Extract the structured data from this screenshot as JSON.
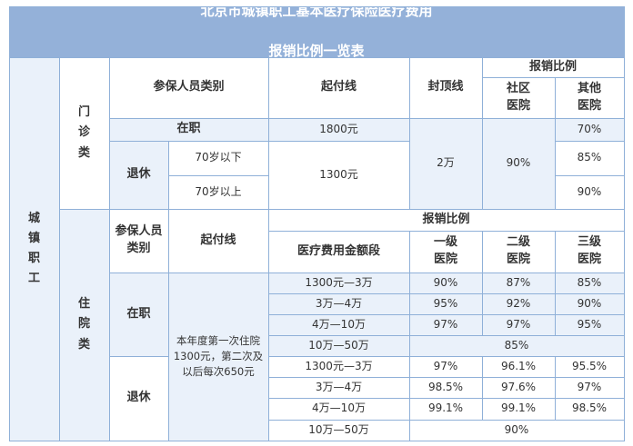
{
  "title": {
    "line1": "北京市城镇职工基本医疗保险医疗费用",
    "line2": "报销比例一览表"
  },
  "category": "城\n镇\n职\n工",
  "outpatient": {
    "label": "门\n诊\n类",
    "header_insured_type": "参保人员类别",
    "header_deductible": "起付线",
    "header_cap": "封顶线",
    "header_reimburse": "报销比例",
    "header_community": "社区\n医院",
    "header_other": "其他\n医院",
    "employed": "在职",
    "employed_deductible": "1800元",
    "retired": "退休",
    "retired_under70": "70岁以下",
    "retired_over70": "70岁以上",
    "retired_deductible": "1300元",
    "cap": "2万",
    "community_rate": "90%",
    "other_employed": "70%",
    "other_under70": "85%",
    "other_over70": "90%"
  },
  "inpatient": {
    "label": "住\n院\n类",
    "header_insured_type": "参保人员\n类别",
    "header_deductible": "起付线",
    "header_reimburse": "报销比例",
    "header_amount_range": "医疗费用金额段",
    "header_level1": "一级\n医院",
    "header_level2": "二级\n医院",
    "header_level3": "三级\n医院",
    "deductible_text": "本年度第一次住院\n1300元，第二次及\n以后每次650元",
    "employed": {
      "label": "在职",
      "rows": [
        {
          "range": "1300元—3万",
          "l1": "90%",
          "l2": "87%",
          "l3": "85%"
        },
        {
          "range": "3万—4万",
          "l1": "95%",
          "l2": "92%",
          "l3": "90%"
        },
        {
          "range": "4万—10万",
          "l1": "97%",
          "l2": "97%",
          "l3": "95%"
        }
      ],
      "last_range": "10万—50万",
      "last_rate": "85%"
    },
    "retired": {
      "label": "退休",
      "rows": [
        {
          "range": "1300元—3万",
          "l1": "97%",
          "l2": "96.1%",
          "l3": "95.5%"
        },
        {
          "range": "3万—4万",
          "l1": "98.5%",
          "l2": "97.6%",
          "l3": "97%"
        },
        {
          "range": "4万—10万",
          "l1": "99.1%",
          "l2": "99.1%",
          "l3": "98.5%"
        }
      ],
      "last_range": "10万—50万",
      "last_rate": "90%"
    }
  }
}
